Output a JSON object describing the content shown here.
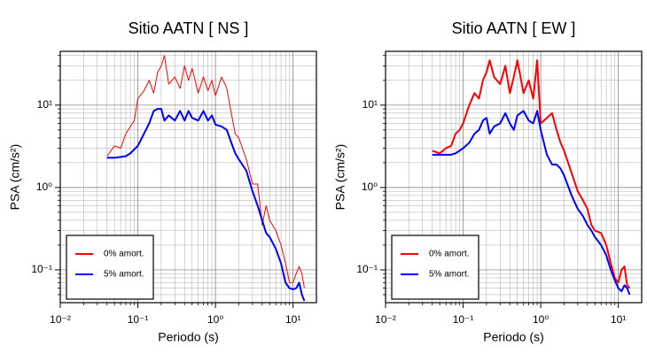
{
  "chart_data": [
    {
      "type": "line",
      "title": "Sitio AATN [ NS ]",
      "x_label": "Periodo (s)",
      "y_label": "PSA (cm/s²)",
      "xscale": "log",
      "yscale": "log",
      "grid": true,
      "legend": "lower left",
      "xlim": [
        0.01,
        20
      ],
      "ylim": [
        0.04,
        45
      ],
      "xticks": [
        {
          "value": 0.01,
          "label": "10⁻²"
        },
        {
          "value": 0.1,
          "label": "10⁻¹"
        },
        {
          "value": 1,
          "label": "10⁰"
        },
        {
          "value": 10,
          "label": "10¹"
        }
      ],
      "yticks": [
        {
          "value": 0.1,
          "label": "10⁻¹"
        },
        {
          "value": 1,
          "label": "10⁰"
        },
        {
          "value": 10,
          "label": "10¹"
        }
      ],
      "xminorticks": [
        0.02,
        0.03,
        0.04,
        0.05,
        0.06,
        0.07,
        0.08,
        0.09,
        0.2,
        0.3,
        0.4,
        0.5,
        0.6,
        0.7,
        0.8,
        0.9,
        2,
        3,
        4,
        5,
        6,
        7,
        8,
        9
      ],
      "yminorticks": [
        0.05,
        0.06,
        0.07,
        0.08,
        0.09,
        0.2,
        0.3,
        0.4,
        0.5,
        0.6,
        0.7,
        0.8,
        0.9,
        2,
        3,
        4,
        5,
        6,
        7,
        8,
        9,
        20,
        30,
        40
      ],
      "x": [
        0.04,
        0.05,
        0.06,
        0.07,
        0.08,
        0.09,
        0.1,
        0.12,
        0.14,
        0.16,
        0.18,
        0.2,
        0.22,
        0.25,
        0.3,
        0.35,
        0.4,
        0.45,
        0.5,
        0.6,
        0.7,
        0.8,
        0.9,
        1.0,
        1.2,
        1.4,
        1.6,
        1.8,
        2.0,
        2.5,
        3,
        3.5,
        4,
        4.5,
        5,
        6,
        7,
        8,
        9,
        10,
        11,
        12,
        13,
        14
      ],
      "series": [
        {
          "name": "0% amort.",
          "color": "#ff0000",
          "width": 1,
          "values": [
            2.4,
            3.2,
            3.0,
            4.5,
            5.5,
            6.5,
            12,
            15,
            20,
            14,
            25,
            30,
            40,
            18,
            22,
            16,
            30,
            20,
            28,
            14,
            22,
            15,
            20,
            13,
            22,
            16,
            8,
            4.5,
            4.0,
            2.2,
            1.1,
            1.1,
            0.35,
            0.6,
            0.4,
            0.3,
            0.2,
            0.12,
            0.07,
            0.07,
            0.09,
            0.11,
            0.09,
            0.06
          ]
        },
        {
          "name": "5% amort.",
          "color": "#0000ff",
          "width": 2,
          "values": [
            2.3,
            2.3,
            2.35,
            2.4,
            2.6,
            2.9,
            3.2,
            4.5,
            6.0,
            8.5,
            9.0,
            9.0,
            6.5,
            7.5,
            6.5,
            8.5,
            6.5,
            8.5,
            7.0,
            6.5,
            8.5,
            6.5,
            7.5,
            5.8,
            5.5,
            5.0,
            3.5,
            2.6,
            2.2,
            1.6,
            0.9,
            0.6,
            0.4,
            0.28,
            0.25,
            0.18,
            0.12,
            0.07,
            0.06,
            0.058,
            0.06,
            0.07,
            0.05,
            0.042
          ]
        }
      ]
    },
    {
      "type": "line",
      "title": "Sitio AATN [ EW ]",
      "x_label": "Periodo (s)",
      "y_label": "PSA (cm/s²)",
      "xscale": "log",
      "yscale": "log",
      "grid": true,
      "legend": "lower left",
      "xlim": [
        0.01,
        20
      ],
      "ylim": [
        0.04,
        45
      ],
      "xticks": [
        {
          "value": 0.01,
          "label": "10⁻²"
        },
        {
          "value": 0.1,
          "label": "10⁻¹"
        },
        {
          "value": 1,
          "label": "10⁰"
        },
        {
          "value": 10,
          "label": "10¹"
        }
      ],
      "yticks": [
        {
          "value": 0.1,
          "label": "10⁻¹"
        },
        {
          "value": 1,
          "label": "10⁰"
        },
        {
          "value": 10,
          "label": "10¹"
        }
      ],
      "xminorticks": [
        0.02,
        0.03,
        0.04,
        0.05,
        0.06,
        0.07,
        0.08,
        0.09,
        0.2,
        0.3,
        0.4,
        0.5,
        0.6,
        0.7,
        0.8,
        0.9,
        2,
        3,
        4,
        5,
        6,
        7,
        8,
        9
      ],
      "yminorticks": [
        0.05,
        0.06,
        0.07,
        0.08,
        0.09,
        0.2,
        0.3,
        0.4,
        0.5,
        0.6,
        0.7,
        0.8,
        0.9,
        2,
        3,
        4,
        5,
        6,
        7,
        8,
        9,
        20,
        30,
        40
      ],
      "x": [
        0.04,
        0.05,
        0.06,
        0.07,
        0.08,
        0.09,
        0.1,
        0.12,
        0.14,
        0.16,
        0.18,
        0.2,
        0.22,
        0.25,
        0.3,
        0.35,
        0.4,
        0.45,
        0.5,
        0.6,
        0.7,
        0.8,
        0.9,
        1.0,
        1.2,
        1.4,
        1.6,
        1.8,
        2.0,
        2.5,
        3,
        3.5,
        4,
        4.5,
        5,
        6,
        7,
        8,
        9,
        10,
        11,
        12,
        13,
        14
      ],
      "series": [
        {
          "name": "0% amort.",
          "color": "#ff0000",
          "width": 2,
          "values": [
            2.8,
            2.6,
            3.0,
            3.2,
            4.5,
            5.0,
            6.0,
            10,
            14,
            12,
            20,
            25,
            35,
            22,
            18,
            30,
            14,
            22,
            35,
            14,
            20,
            12,
            35,
            6,
            7,
            8,
            5,
            3.5,
            2.8,
            1.5,
            0.9,
            0.7,
            0.55,
            0.35,
            0.3,
            0.28,
            0.2,
            0.12,
            0.08,
            0.07,
            0.1,
            0.11,
            0.065,
            0.06
          ]
        },
        {
          "name": "5% amort.",
          "color": "#0000ff",
          "width": 2,
          "values": [
            2.5,
            2.5,
            2.5,
            2.5,
            2.6,
            2.8,
            3.0,
            3.5,
            4.5,
            5.0,
            6.5,
            7.0,
            4.5,
            5.5,
            6.0,
            8.0,
            6.0,
            5.0,
            7.5,
            8.5,
            6.5,
            6.0,
            8.5,
            5.0,
            2.5,
            1.9,
            1.9,
            1.7,
            1.4,
            0.8,
            0.55,
            0.45,
            0.35,
            0.3,
            0.25,
            0.2,
            0.15,
            0.1,
            0.075,
            0.06,
            0.055,
            0.065,
            0.06,
            0.05
          ]
        }
      ]
    }
  ]
}
